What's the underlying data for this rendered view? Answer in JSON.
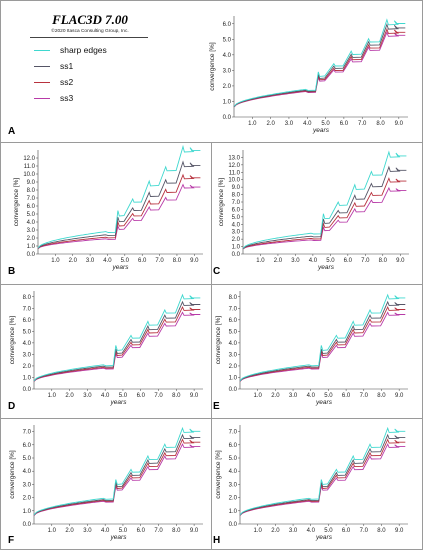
{
  "legend": {
    "title": "FLAC3D 7.00",
    "copyright": "©2020 Itasca Consulting Group, Inc."
  },
  "colors": {
    "sharp edges": "#3fd8cf",
    "ss1": "#555566",
    "ss2": "#b8323e",
    "ss3": "#b83aa8"
  },
  "chart_data": [
    {
      "panel": "A",
      "type": "line",
      "xlabel": "years",
      "ylabel": "convergence [%]",
      "xlim": [
        0,
        9.5
      ],
      "ylim": [
        0,
        6.5
      ],
      "xticks": [
        "1.0",
        "2.0",
        "3.0",
        "4.0",
        "5.0",
        "6.0",
        "7.0",
        "8.0",
        "9.0"
      ],
      "yticks": [
        "0.0",
        "1.0",
        "2.0",
        "3.0",
        "4.0",
        "5.0",
        "6.0"
      ],
      "series": [
        {
          "name": "sharp edges",
          "values": [
            0.9,
            1.78,
            2.85,
            3.4,
            4.2,
            5.0,
            6.2
          ]
        },
        {
          "name": "ss1",
          "values": [
            0.88,
            1.72,
            2.7,
            3.25,
            4.0,
            4.8,
            5.9
          ]
        },
        {
          "name": "ss2",
          "values": [
            0.86,
            1.68,
            2.6,
            3.1,
            3.85,
            4.6,
            5.6
          ]
        },
        {
          "name": "ss3",
          "values": [
            0.85,
            1.64,
            2.5,
            3.0,
            3.7,
            4.45,
            5.4
          ]
        }
      ]
    },
    {
      "panel": "B",
      "type": "line",
      "xlabel": "years",
      "ylabel": "convergence [%]",
      "xlim": [
        0,
        9.5
      ],
      "ylim": [
        0,
        13
      ],
      "xticks": [
        "1.0",
        "2.0",
        "3.0",
        "4.0",
        "5.0",
        "6.0",
        "7.0",
        "8.0",
        "9.0"
      ],
      "yticks": [
        "0.0",
        "1.0",
        "2.0",
        "3.0",
        "4.0",
        "5.0",
        "6.0",
        "7.0",
        "8.0",
        "9.0",
        "10.0",
        "11.0",
        "12.0"
      ],
      "series": [
        {
          "name": "sharp edges",
          "values": [
            1.0,
            2.8,
            5.3,
            6.8,
            9.0,
            10.8,
            13.3
          ]
        },
        {
          "name": "ss1",
          "values": [
            0.95,
            2.4,
            4.5,
            5.7,
            7.6,
            9.2,
            11.4
          ]
        },
        {
          "name": "ss2",
          "values": [
            0.92,
            2.1,
            3.9,
            5.0,
            6.6,
            8.0,
            9.8
          ]
        },
        {
          "name": "ss3",
          "values": [
            0.9,
            1.9,
            3.4,
            4.4,
            5.8,
            7.0,
            8.6
          ]
        }
      ]
    },
    {
      "panel": "C",
      "type": "line",
      "xlabel": "years",
      "ylabel": "convergence [%]",
      "xlim": [
        0,
        9.5
      ],
      "ylim": [
        0,
        14
      ],
      "xticks": [
        "1.0",
        "2.0",
        "3.0",
        "4.0",
        "5.0",
        "6.0",
        "7.0",
        "8.0",
        "9.0"
      ],
      "yticks": [
        "0.0",
        "1.0",
        "2.0",
        "3.0",
        "4.0",
        "5.0",
        "6.0",
        "7.0",
        "8.0",
        "9.0",
        "10.0",
        "11.0",
        "12.0",
        "13.0"
      ],
      "series": [
        {
          "name": "sharp edges",
          "values": [
            1.0,
            2.8,
            5.3,
            6.9,
            9.2,
            11.0,
            13.6
          ]
        },
        {
          "name": "ss1",
          "values": [
            0.95,
            2.4,
            4.6,
            5.8,
            7.8,
            9.4,
            11.6
          ]
        },
        {
          "name": "ss2",
          "values": [
            0.92,
            2.1,
            4.0,
            5.1,
            6.8,
            8.2,
            10.1
          ]
        },
        {
          "name": "ss3",
          "values": [
            0.9,
            1.9,
            3.5,
            4.5,
            6.0,
            7.2,
            8.8
          ]
        }
      ]
    },
    {
      "panel": "D",
      "type": "line",
      "xlabel": "years",
      "ylabel": "convergence [%]",
      "xlim": [
        0,
        9.5
      ],
      "ylim": [
        0,
        8.5
      ],
      "xticks": [
        "1.0",
        "2.0",
        "3.0",
        "4.0",
        "5.0",
        "6.0",
        "7.0",
        "8.0",
        "9.0"
      ],
      "yticks": [
        "0.0",
        "1.0",
        "2.0",
        "3.0",
        "4.0",
        "5.0",
        "6.0",
        "7.0",
        "8.0"
      ],
      "series": [
        {
          "name": "sharp edges",
          "values": [
            0.95,
            2.1,
            3.7,
            4.6,
            5.8,
            6.8,
            8.1
          ]
        },
        {
          "name": "ss1",
          "values": [
            0.92,
            1.98,
            3.4,
            4.25,
            5.4,
            6.35,
            7.5
          ]
        },
        {
          "name": "ss2",
          "values": [
            0.9,
            1.88,
            3.2,
            4.0,
            5.1,
            6.0,
            7.05
          ]
        },
        {
          "name": "ss3",
          "values": [
            0.88,
            1.8,
            3.0,
            3.75,
            4.8,
            5.65,
            6.6
          ]
        }
      ]
    },
    {
      "panel": "E",
      "type": "line",
      "xlabel": "years",
      "ylabel": "convergence [%]",
      "xlim": [
        0,
        9.5
      ],
      "ylim": [
        0,
        8.5
      ],
      "xticks": [
        "1.0",
        "2.0",
        "3.0",
        "4.0",
        "5.0",
        "6.0",
        "7.0",
        "8.0",
        "9.0"
      ],
      "yticks": [
        "0.0",
        "1.0",
        "2.0",
        "3.0",
        "4.0",
        "5.0",
        "6.0",
        "7.0",
        "8.0"
      ],
      "series": [
        {
          "name": "sharp edges",
          "values": [
            0.95,
            2.1,
            3.7,
            4.6,
            5.8,
            6.8,
            8.1
          ]
        },
        {
          "name": "ss1",
          "values": [
            0.92,
            1.98,
            3.4,
            4.25,
            5.4,
            6.35,
            7.5
          ]
        },
        {
          "name": "ss2",
          "values": [
            0.9,
            1.88,
            3.2,
            4.0,
            5.1,
            6.0,
            7.05
          ]
        },
        {
          "name": "ss3",
          "values": [
            0.88,
            1.8,
            3.0,
            3.75,
            4.8,
            5.65,
            6.6
          ]
        }
      ]
    },
    {
      "panel": "F",
      "type": "line",
      "xlabel": "years",
      "ylabel": "convergence [%]",
      "xlim": [
        0,
        9.5
      ],
      "ylim": [
        0,
        7.5
      ],
      "xticks": [
        "1.0",
        "2.0",
        "3.0",
        "4.0",
        "5.0",
        "6.0",
        "7.0",
        "8.0",
        "9.0"
      ],
      "yticks": [
        "0.0",
        "1.0",
        "2.0",
        "3.0",
        "4.0",
        "5.0",
        "6.0",
        "7.0"
      ],
      "series": [
        {
          "name": "sharp edges",
          "values": [
            0.92,
            1.95,
            3.3,
            4.1,
            5.1,
            6.0,
            7.2
          ]
        },
        {
          "name": "ss1",
          "values": [
            0.9,
            1.85,
            3.1,
            3.85,
            4.8,
            5.65,
            6.7
          ]
        },
        {
          "name": "ss2",
          "values": [
            0.88,
            1.78,
            2.95,
            3.65,
            4.55,
            5.35,
            6.35
          ]
        },
        {
          "name": "ss3",
          "values": [
            0.86,
            1.72,
            2.8,
            3.45,
            4.3,
            5.1,
            6.0
          ]
        }
      ]
    },
    {
      "panel": "H",
      "type": "line",
      "xlabel": "years",
      "ylabel": "convergence [%]",
      "xlim": [
        0,
        9.5
      ],
      "ylim": [
        0,
        7.5
      ],
      "xticks": [
        "1.0",
        "2.0",
        "3.0",
        "4.0",
        "5.0",
        "6.0",
        "7.0",
        "8.0",
        "9.0"
      ],
      "yticks": [
        "0.0",
        "1.0",
        "2.0",
        "3.0",
        "4.0",
        "5.0",
        "6.0",
        "7.0"
      ],
      "series": [
        {
          "name": "sharp edges",
          "values": [
            0.92,
            1.95,
            3.3,
            4.1,
            5.1,
            6.0,
            7.2
          ]
        },
        {
          "name": "ss1",
          "values": [
            0.9,
            1.85,
            3.1,
            3.85,
            4.8,
            5.65,
            6.7
          ]
        },
        {
          "name": "ss2",
          "values": [
            0.88,
            1.78,
            2.95,
            3.65,
            4.55,
            5.35,
            6.35
          ]
        },
        {
          "name": "ss3",
          "values": [
            0.86,
            1.72,
            2.8,
            3.45,
            4.3,
            5.1,
            6.0
          ]
        }
      ]
    }
  ]
}
